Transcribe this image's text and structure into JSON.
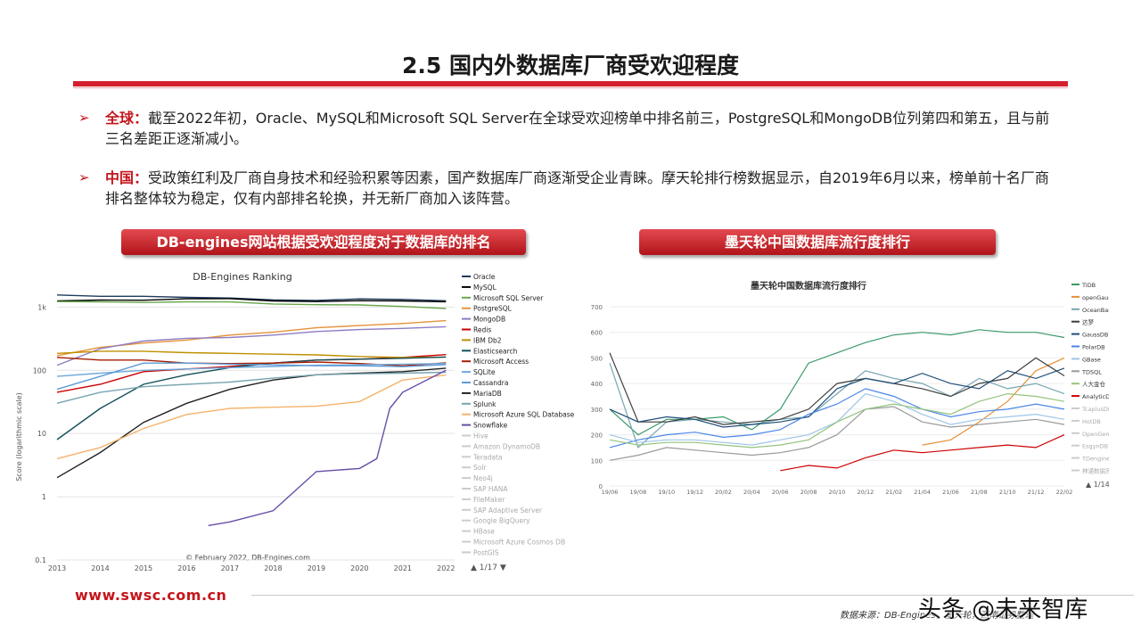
{
  "slide": {
    "title": "2.5 国内外数据库厂商受欢迎程度",
    "bullets": [
      {
        "keyword": "全球：",
        "text": "截至2022年初，Oracle、MySQL和Microsoft SQL Server在全球受欢迎榜单中排名前三，PostgreSQL和MongoDB位列第四和第五，且与前三名差距正逐渐减小。"
      },
      {
        "keyword": "中国：",
        "text": "受政策红利及厂商自身技术和经验积累等因素，国产数据库厂商逐渐受企业青睐。摩天轮排行榜数据显示，自2019年6月以来，榜单前十名厂商排名整体较为稳定，仅有内部排名轮换，并无新厂商加入该阵营。"
      }
    ],
    "banner_left": "DB-engines网站根据受欢迎程度对于数据库的排名",
    "banner_right": "墨天轮中国数据库流行度排行",
    "site": "www.swsc.com.cn",
    "source": "数据来源：DB-Engines，墨天轮，西南证券整理",
    "watermark": "头条 @未来智库"
  },
  "colors": {
    "accent": "#d4202e",
    "banner": "#c4161c"
  },
  "chart_data": [
    {
      "type": "line",
      "title": "DB-Engines Ranking",
      "ylabel": "Score (logarithmic scale)",
      "yscale": "log",
      "ylim": [
        0.1,
        2000
      ],
      "yticks": [
        "0.1",
        "1",
        "10",
        "100",
        "1k"
      ],
      "x": [
        "2013",
        "2014",
        "2015",
        "2016",
        "2017",
        "2018",
        "2019",
        "2020",
        "2021",
        "2022"
      ],
      "xlim": [
        2013,
        2022.2
      ],
      "copyright": "© February 2022, DB-Engines.com",
      "pager": "1/17",
      "legend_extra": [
        "Hive",
        "Amazon DynamoDB",
        "Teradata",
        "Solr",
        "Neo4j",
        "SAP HANA",
        "FileMaker",
        "SAP Adaptive Server",
        "Google BigQuery",
        "HBase",
        "Microsoft Azure Cosmos DB",
        "PostGIS"
      ],
      "series": [
        {
          "name": "Oracle",
          "color": "#1f3b5c",
          "points": [
            [
              2013,
              1550
            ],
            [
              2014,
              1480
            ],
            [
              2015,
              1480
            ],
            [
              2016,
              1420
            ],
            [
              2017,
              1390
            ],
            [
              2018,
              1300
            ],
            [
              2019,
              1270
            ],
            [
              2020,
              1345
            ],
            [
              2021,
              1320
            ],
            [
              2022,
              1256
            ]
          ]
        },
        {
          "name": "MySQL",
          "color": "#000000",
          "points": [
            [
              2013,
              1250
            ],
            [
              2014,
              1290
            ],
            [
              2015,
              1280
            ],
            [
              2016,
              1350
            ],
            [
              2017,
              1360
            ],
            [
              2018,
              1250
            ],
            [
              2019,
              1220
            ],
            [
              2020,
              1260
            ],
            [
              2021,
              1250
            ],
            [
              2022,
              1214
            ]
          ]
        },
        {
          "name": "Microsoft SQL Server",
          "color": "#6aa84f",
          "points": [
            [
              2013,
              1220
            ],
            [
              2014,
              1210
            ],
            [
              2015,
              1180
            ],
            [
              2016,
              1210
            ],
            [
              2017,
              1210
            ],
            [
              2018,
              1120
            ],
            [
              2019,
              1090
            ],
            [
              2020,
              1080
            ],
            [
              2021,
              1020
            ],
            [
              2022,
              949
            ]
          ]
        },
        {
          "name": "PostgreSQL",
          "color": "#e69138",
          "points": [
            [
              2013,
              170
            ],
            [
              2014,
              230
            ],
            [
              2015,
              270
            ],
            [
              2016,
              300
            ],
            [
              2017,
              360
            ],
            [
              2018,
              400
            ],
            [
              2019,
              470
            ],
            [
              2020,
              510
            ],
            [
              2021,
              550
            ],
            [
              2022,
              609
            ]
          ]
        },
        {
          "name": "MongoDB",
          "color": "#8e7cc3",
          "points": [
            [
              2013,
              120
            ],
            [
              2014,
              220
            ],
            [
              2015,
              290
            ],
            [
              2016,
              320
            ],
            [
              2017,
              330
            ],
            [
              2018,
              360
            ],
            [
              2019,
              410
            ],
            [
              2020,
              440
            ],
            [
              2021,
              460
            ],
            [
              2022,
              488
            ]
          ]
        },
        {
          "name": "Redis",
          "color": "#cc0000",
          "points": [
            [
              2013,
              45
            ],
            [
              2014,
              60
            ],
            [
              2015,
              95
            ],
            [
              2016,
              105
            ],
            [
              2017,
              115
            ],
            [
              2018,
              130
            ],
            [
              2019,
              145
            ],
            [
              2020,
              150
            ],
            [
              2021,
              160
            ],
            [
              2022,
              177
            ]
          ]
        },
        {
          "name": "IBM Db2",
          "color": "#bf9000",
          "points": [
            [
              2013,
              185
            ],
            [
              2014,
              200
            ],
            [
              2015,
              200
            ],
            [
              2016,
              190
            ],
            [
              2017,
              185
            ],
            [
              2018,
              180
            ],
            [
              2019,
              175
            ],
            [
              2020,
              165
            ],
            [
              2021,
              160
            ],
            [
              2022,
              162
            ]
          ]
        },
        {
          "name": "Elasticsearch",
          "color": "#134f5c",
          "points": [
            [
              2013,
              8
            ],
            [
              2014,
              25
            ],
            [
              2015,
              60
            ],
            [
              2016,
              85
            ],
            [
              2017,
              110
            ],
            [
              2018,
              130
            ],
            [
              2019,
              145
            ],
            [
              2020,
              150
            ],
            [
              2021,
              155
            ],
            [
              2022,
              162
            ]
          ]
        },
        {
          "name": "Microsoft Access",
          "color": "#a61c00",
          "points": [
            [
              2013,
              160
            ],
            [
              2014,
              145
            ],
            [
              2015,
              145
            ],
            [
              2016,
              130
            ],
            [
              2017,
              128
            ],
            [
              2018,
              130
            ],
            [
              2019,
              135
            ],
            [
              2020,
              128
            ],
            [
              2021,
              118
            ],
            [
              2022,
              131
            ]
          ]
        },
        {
          "name": "SQLite",
          "color": "#6fa8dc",
          "points": [
            [
              2013,
              80
            ],
            [
              2014,
              90
            ],
            [
              2015,
              100
            ],
            [
              2016,
              105
            ],
            [
              2017,
              110
            ],
            [
              2018,
              115
            ],
            [
              2019,
              120
            ],
            [
              2020,
              122
            ],
            [
              2021,
              125
            ],
            [
              2022,
              128
            ]
          ]
        },
        {
          "name": "Cassandra",
          "color": "#5b9bd5",
          "points": [
            [
              2013,
              50
            ],
            [
              2014,
              80
            ],
            [
              2015,
              130
            ],
            [
              2016,
              130
            ],
            [
              2017,
              125
            ],
            [
              2018,
              122
            ],
            [
              2019,
              118
            ],
            [
              2020,
              118
            ],
            [
              2021,
              114
            ],
            [
              2022,
              123
            ]
          ]
        },
        {
          "name": "MariaDB",
          "color": "#222222",
          "points": [
            [
              2013,
              2
            ],
            [
              2014,
              5
            ],
            [
              2015,
              15
            ],
            [
              2016,
              30
            ],
            [
              2017,
              50
            ],
            [
              2018,
              70
            ],
            [
              2019,
              85
            ],
            [
              2020,
              90
            ],
            [
              2021,
              95
            ],
            [
              2022,
              108
            ]
          ]
        },
        {
          "name": "Splunk",
          "color": "#76a5af",
          "points": [
            [
              2013,
              30
            ],
            [
              2014,
              45
            ],
            [
              2015,
              55
            ],
            [
              2016,
              60
            ],
            [
              2017,
              65
            ],
            [
              2018,
              75
            ],
            [
              2019,
              85
            ],
            [
              2020,
              88
            ],
            [
              2021,
              90
            ],
            [
              2022,
              93
            ]
          ]
        },
        {
          "name": "Microsoft Azure SQL Database",
          "color": "#f6b26b",
          "points": [
            [
              2013,
              4
            ],
            [
              2014,
              6
            ],
            [
              2015,
              12
            ],
            [
              2016,
              20
            ],
            [
              2017,
              25
            ],
            [
              2018,
              26
            ],
            [
              2019,
              27
            ],
            [
              2020,
              32
            ],
            [
              2021,
              70
            ],
            [
              2022,
              84
            ]
          ]
        },
        {
          "name": "Snowflake",
          "color": "#674ea7",
          "points": [
            [
              2016.5,
              0.35
            ],
            [
              2017,
              0.4
            ],
            [
              2018,
              0.6
            ],
            [
              2019,
              2.5
            ],
            [
              2020,
              2.8
            ],
            [
              2020.4,
              4
            ],
            [
              2020.7,
              25
            ],
            [
              2021,
              45
            ],
            [
              2022,
              100
            ]
          ]
        }
      ]
    },
    {
      "type": "line",
      "title": "墨天轮中国数据库流行度排行",
      "ylim": [
        0,
        700
      ],
      "yticks": [
        "0",
        "100",
        "200",
        "300",
        "400",
        "500",
        "600",
        "700"
      ],
      "x": [
        "19/06",
        "19/08",
        "19/10",
        "19/12",
        "20/02",
        "20/04",
        "20/06",
        "20/08",
        "20/10",
        "20/12",
        "21/02",
        "21/04",
        "21/06",
        "21/08",
        "21/10",
        "21/12",
        "22/02"
      ],
      "pager": "1/14",
      "legend_extra": [
        "TcaplusDB",
        "HotDB",
        "OpenGemini",
        "EsgynDB",
        "TDengine",
        "神通数据库"
      ],
      "series": [
        {
          "name": "TiDB",
          "color": "#3a9a6a",
          "values": [
            300,
            200,
            260,
            260,
            270,
            220,
            300,
            480,
            520,
            560,
            590,
            600,
            590,
            610,
            600,
            600,
            580
          ]
        },
        {
          "name": "openGauss",
          "color": "#e69138",
          "values": [
            null,
            null,
            null,
            null,
            null,
            null,
            null,
            null,
            null,
            null,
            null,
            160,
            180,
            250,
            330,
            450,
            500
          ]
        },
        {
          "name": "OceanBase",
          "color": "#76a5af",
          "values": [
            480,
            150,
            250,
            260,
            250,
            240,
            260,
            270,
            360,
            450,
            420,
            400,
            350,
            420,
            380,
            400,
            360
          ]
        },
        {
          "name": "达梦",
          "color": "#3d3d3d",
          "values": [
            520,
            250,
            250,
            270,
            240,
            250,
            260,
            300,
            400,
            420,
            400,
            380,
            350,
            400,
            420,
            500,
            430
          ]
        },
        {
          "name": "GaussDB",
          "color": "#1f4e79",
          "values": [
            300,
            250,
            270,
            260,
            230,
            240,
            250,
            270,
            380,
            420,
            400,
            440,
            400,
            380,
            450,
            420,
            460
          ]
        },
        {
          "name": "PolarDB",
          "color": "#4a86e8",
          "values": [
            150,
            180,
            200,
            210,
            190,
            200,
            220,
            280,
            320,
            380,
            350,
            300,
            270,
            290,
            300,
            320,
            300
          ]
        },
        {
          "name": "GBase",
          "color": "#9fc5e8",
          "values": [
            200,
            170,
            180,
            180,
            170,
            160,
            180,
            200,
            250,
            360,
            330,
            280,
            240,
            260,
            270,
            280,
            260
          ]
        },
        {
          "name": "TDSQL",
          "color": "#999999",
          "values": [
            100,
            120,
            150,
            140,
            130,
            120,
            130,
            150,
            200,
            300,
            310,
            250,
            230,
            240,
            250,
            260,
            240
          ]
        },
        {
          "name": "人大金仓",
          "color": "#93c47d",
          "values": [
            180,
            160,
            170,
            170,
            160,
            150,
            160,
            180,
            250,
            300,
            320,
            300,
            280,
            330,
            360,
            350,
            330
          ]
        },
        {
          "name": "AnalyticDB",
          "color": "#cc0000",
          "values": [
            null,
            null,
            null,
            null,
            null,
            null,
            60,
            80,
            70,
            110,
            140,
            130,
            140,
            150,
            160,
            150,
            200
          ]
        }
      ]
    }
  ]
}
